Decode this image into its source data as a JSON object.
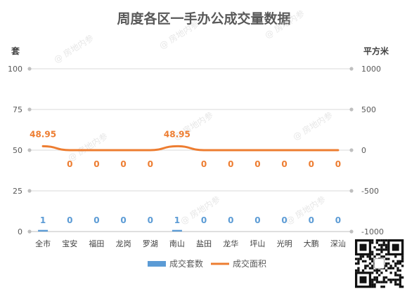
{
  "chart_data": {
    "type": "bar",
    "title": "周度各区一手办公成交量数据",
    "categories": [
      "全市",
      "宝安",
      "福田",
      "龙岗",
      "罗湖",
      "南山",
      "盐田",
      "龙华",
      "坪山",
      "光明",
      "大鹏",
      "深汕"
    ],
    "left_axis": {
      "label": "套",
      "ylim": [
        0,
        100
      ],
      "ticks": [
        0,
        25,
        50,
        75,
        100
      ]
    },
    "right_axis": {
      "label": "平方米",
      "ylim": [
        -1000,
        1000
      ],
      "ticks": [
        -1000,
        -500,
        0,
        500,
        1000
      ]
    },
    "series": [
      {
        "name": "成交套数",
        "type": "bar",
        "axis": "left",
        "color": "#5b9bd5",
        "values": [
          1,
          0,
          0,
          0,
          0,
          1,
          0,
          0,
          0,
          0,
          0,
          0
        ],
        "labels": [
          "1",
          "0",
          "0",
          "0",
          "0",
          "1",
          "0",
          "0",
          "0",
          "0",
          "0",
          "0"
        ]
      },
      {
        "name": "成交面积",
        "type": "line",
        "axis": "right",
        "color": "#ed7d31",
        "values": [
          48.95,
          0,
          0,
          0,
          0,
          48.95,
          0,
          0,
          0,
          0,
          0,
          0
        ],
        "labels": [
          "48.95",
          "0",
          "0",
          "0",
          "0",
          "48.95",
          "0",
          "0",
          "0",
          "0",
          "0",
          "0"
        ]
      }
    ],
    "legend_position": "bottom",
    "grid": true
  },
  "watermark": "@ 房地内参",
  "qr_code_icon": "qr-code-icon"
}
